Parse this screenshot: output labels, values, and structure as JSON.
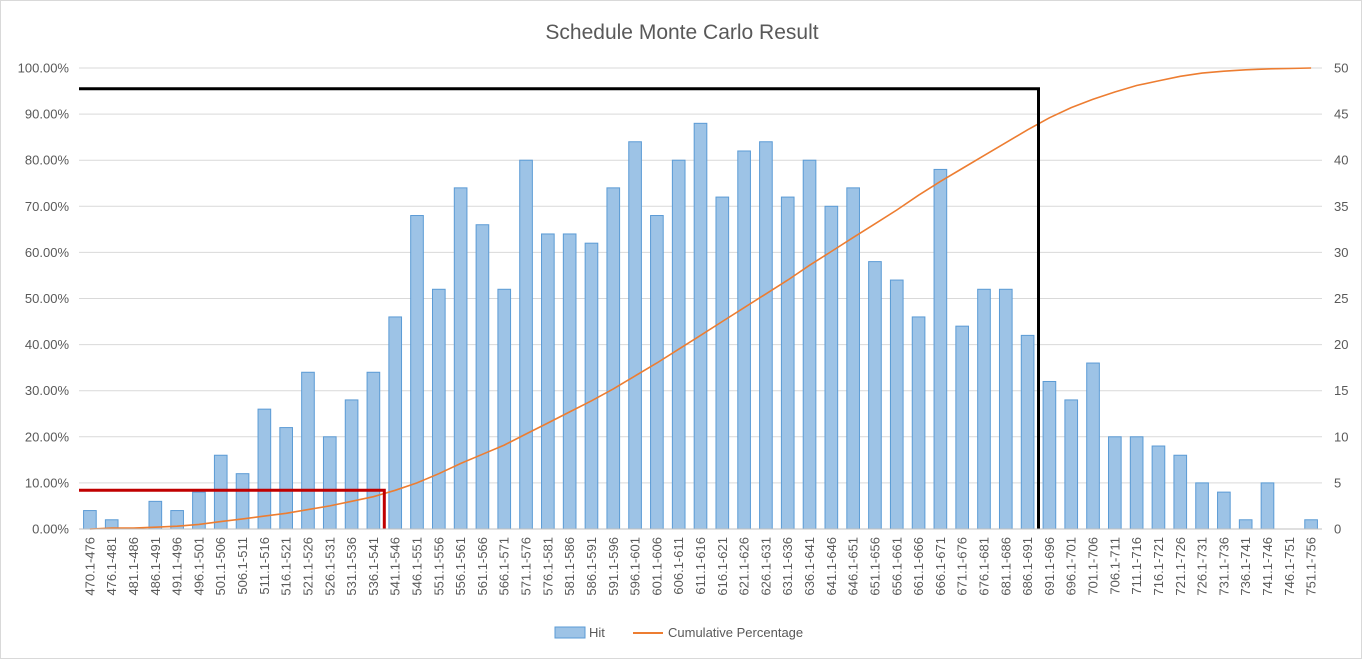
{
  "chart_data": {
    "type": "bar",
    "title": "Schedule  Monte Carlo Result",
    "categories": [
      "470.1-476",
      "476.1-481",
      "481.1-486",
      "486.1-491",
      "491.1-496",
      "496.1-501",
      "501.1-506",
      "506.1-511",
      "511.1-516",
      "516.1-521",
      "521.1-526",
      "526.1-531",
      "531.1-536",
      "536.1-541",
      "541.1-546",
      "546.1-551",
      "551.1-556",
      "556.1-561",
      "561.1-566",
      "566.1-571",
      "571.1-576",
      "576.1-581",
      "581.1-586",
      "586.1-591",
      "591.1-596",
      "596.1-601",
      "601.1-606",
      "606.1-611",
      "611.1-616",
      "616.1-621",
      "621.1-626",
      "626.1-631",
      "631.1-636",
      "636.1-641",
      "641.1-646",
      "646.1-651",
      "651.1-656",
      "656.1-661",
      "661.1-666",
      "666.1-671",
      "671.1-676",
      "676.1-681",
      "681.1-686",
      "686.1-691",
      "691.1-696",
      "696.1-701",
      "701.1-706",
      "706.1-711",
      "711.1-716",
      "716.1-721",
      "721.1-726",
      "726.1-731",
      "731.1-736",
      "736.1-741",
      "741.1-746",
      "746.1-751",
      "751.1-756"
    ],
    "series": [
      {
        "name": "Hit",
        "type": "bar",
        "axis": "right",
        "color": "#9dc3e6",
        "values": [
          2,
          1,
          0,
          3,
          2,
          4,
          8,
          6,
          13,
          11,
          17,
          10,
          14,
          17,
          23,
          34,
          26,
          37,
          33,
          26,
          40,
          32,
          32,
          31,
          37,
          42,
          34,
          40,
          44,
          36,
          41,
          42,
          36,
          40,
          35,
          37,
          29,
          27,
          23,
          39,
          22,
          26,
          26,
          21,
          16,
          14,
          18,
          10,
          10,
          9,
          8,
          5,
          4,
          1,
          5,
          0,
          1
        ]
      },
      {
        "name": "Cumulative Percentage",
        "type": "line",
        "axis": "left",
        "color": "#ed7d31",
        "values": [
          0.0,
          0.2,
          0.2,
          0.4,
          0.6,
          1.0,
          1.6,
          2.2,
          2.8,
          3.4,
          4.2,
          5.0,
          6.0,
          7.0,
          8.4,
          10.0,
          12.0,
          14.2,
          16.2,
          18.2,
          20.6,
          23.0,
          25.4,
          27.8,
          30.4,
          33.2,
          36.0,
          39.0,
          42.0,
          45.0,
          48.0,
          51.0,
          54.0,
          57.2,
          60.2,
          63.2,
          66.2,
          69.2,
          72.4,
          75.4,
          78.2,
          81.0,
          83.8,
          86.6,
          89.2,
          91.4,
          93.2,
          94.8,
          96.2,
          97.2,
          98.2,
          98.9,
          99.3,
          99.6,
          99.8,
          99.9,
          100.0
        ]
      }
    ],
    "y_left": {
      "ticks": [
        "0.00%",
        "10.00%",
        "20.00%",
        "30.00%",
        "40.00%",
        "50.00%",
        "60.00%",
        "70.00%",
        "80.00%",
        "90.00%",
        "100.00%"
      ],
      "range": [
        0,
        100
      ]
    },
    "y_right": {
      "ticks": [
        "0",
        "5",
        "10",
        "15",
        "20",
        "25",
        "30",
        "35",
        "40",
        "45",
        "50"
      ],
      "range": [
        0,
        50
      ]
    },
    "grid": true,
    "legend": "bottom",
    "annotations": [
      {
        "type": "bracket",
        "color": "#c00000",
        "y_value_percent": 8.4,
        "x_category": "536.1-541"
      },
      {
        "type": "bracket",
        "color": "#000000",
        "y_value_percent": 95.5,
        "x_category": "686.1-691"
      }
    ]
  }
}
